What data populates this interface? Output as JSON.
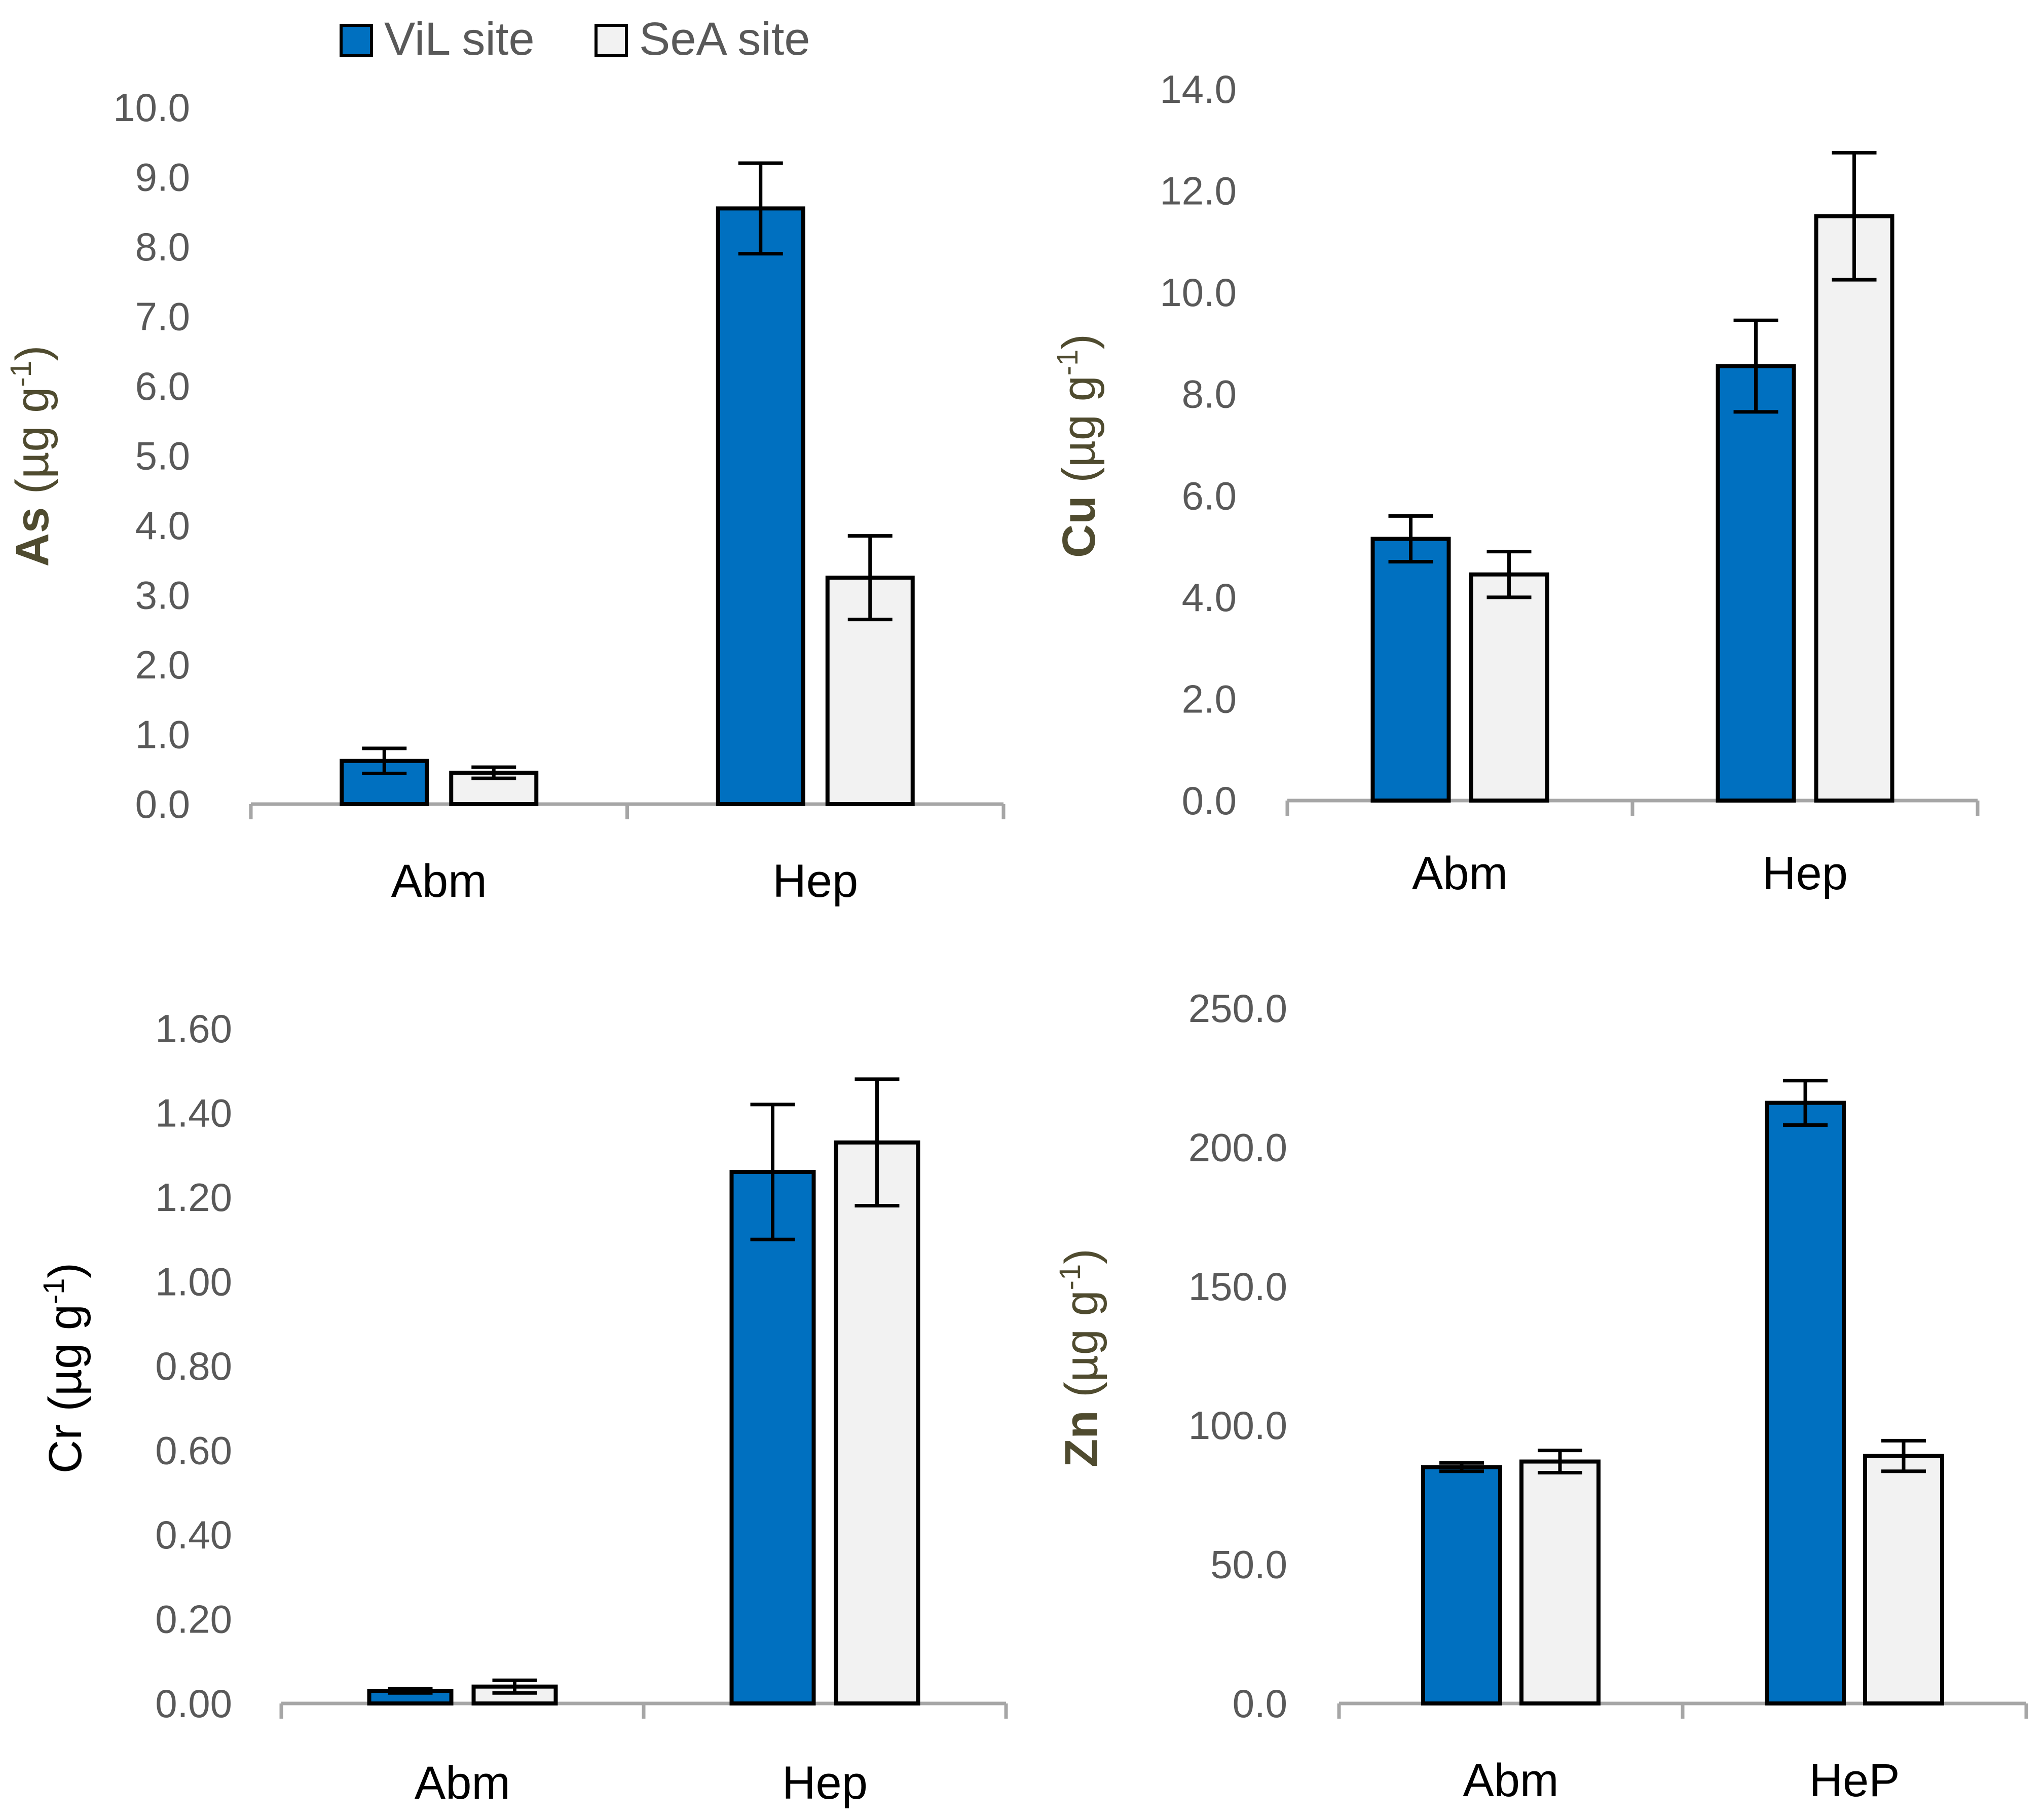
{
  "legend": [
    {
      "label": "ViL site",
      "color": "#0070c0"
    },
    {
      "label": "SeA site",
      "color": "#f2f2f2"
    }
  ],
  "colors": {
    "axis": "#a6a6a6",
    "tick_text": "#595959",
    "olive_label": "#4f4b2f",
    "bar_outline": "#000000"
  },
  "chart_data": [
    {
      "type": "bar",
      "id": "as",
      "ylabel_main": "As",
      "ylabel_rest": " (µg g",
      "ylabel_sup": "-1",
      "ylabel_close": ")",
      "ylabel_color": "#4f4b2f",
      "ylabel_bold": true,
      "categories": [
        "Abm",
        "Hep"
      ],
      "ylim": [
        0,
        10
      ],
      "yticks": [
        "0.0",
        "1.0",
        "2.0",
        "3.0",
        "4.0",
        "5.0",
        "6.0",
        "7.0",
        "8.0",
        "9.0",
        "10.0"
      ],
      "series": [
        {
          "name": "ViL site",
          "values": [
            0.62,
            8.55
          ],
          "errors": [
            0.18,
            0.65
          ]
        },
        {
          "name": "SeA site",
          "values": [
            0.45,
            3.25
          ],
          "errors": [
            0.08,
            0.6
          ]
        }
      ]
    },
    {
      "type": "bar",
      "id": "cu",
      "ylabel_main": "Cu",
      "ylabel_rest": " (µg g",
      "ylabel_sup": "-1",
      "ylabel_close": ")",
      "ylabel_color": "#4f4b2f",
      "ylabel_bold": true,
      "categories": [
        "Abm",
        "Hep"
      ],
      "ylim": [
        0,
        14
      ],
      "yticks": [
        "0.0",
        "2.0",
        "4.0",
        "6.0",
        "8.0",
        "10.0",
        "12.0",
        "14.0"
      ],
      "series": [
        {
          "name": "ViL site",
          "values": [
            5.15,
            8.55
          ],
          "errors": [
            0.45,
            0.9
          ]
        },
        {
          "name": "SeA site",
          "values": [
            4.45,
            11.5
          ],
          "errors": [
            0.45,
            1.25
          ]
        }
      ]
    },
    {
      "type": "bar",
      "id": "cr",
      "ylabel_main": "Cr",
      "ylabel_rest": " (µg g",
      "ylabel_sup": "-1",
      "ylabel_close": ")",
      "ylabel_color": "#000000",
      "ylabel_bold": false,
      "categories": [
        "Abm",
        "Hep"
      ],
      "ylim": [
        0,
        1.6
      ],
      "yticks": [
        "0.00",
        "0.20",
        "0.40",
        "0.60",
        "0.80",
        "1.00",
        "1.20",
        "1.40",
        "1.60"
      ],
      "series": [
        {
          "name": "ViL site",
          "values": [
            0.03,
            1.26
          ],
          "errors": [
            0.005,
            0.16
          ]
        },
        {
          "name": "SeA site",
          "values": [
            0.04,
            1.33
          ],
          "errors": [
            0.015,
            0.15
          ]
        }
      ]
    },
    {
      "type": "bar",
      "id": "zn",
      "ylabel_main": "Zn",
      "ylabel_rest": " (µg g",
      "ylabel_sup": "-1",
      "ylabel_close": ")",
      "ylabel_color": "#4f4b2f",
      "ylabel_bold": true,
      "categories": [
        "Abm",
        "HeP"
      ],
      "ylim": [
        0,
        250
      ],
      "yticks": [
        "0.0",
        "50.0",
        "100.0",
        "150.0",
        "200.0",
        "250.0"
      ],
      "series": [
        {
          "name": "ViL site",
          "values": [
            85,
            216
          ],
          "errors": [
            1.5,
            8
          ]
        },
        {
          "name": "SeA site",
          "values": [
            87,
            89
          ],
          "errors": [
            4,
            5.5
          ]
        }
      ]
    }
  ]
}
